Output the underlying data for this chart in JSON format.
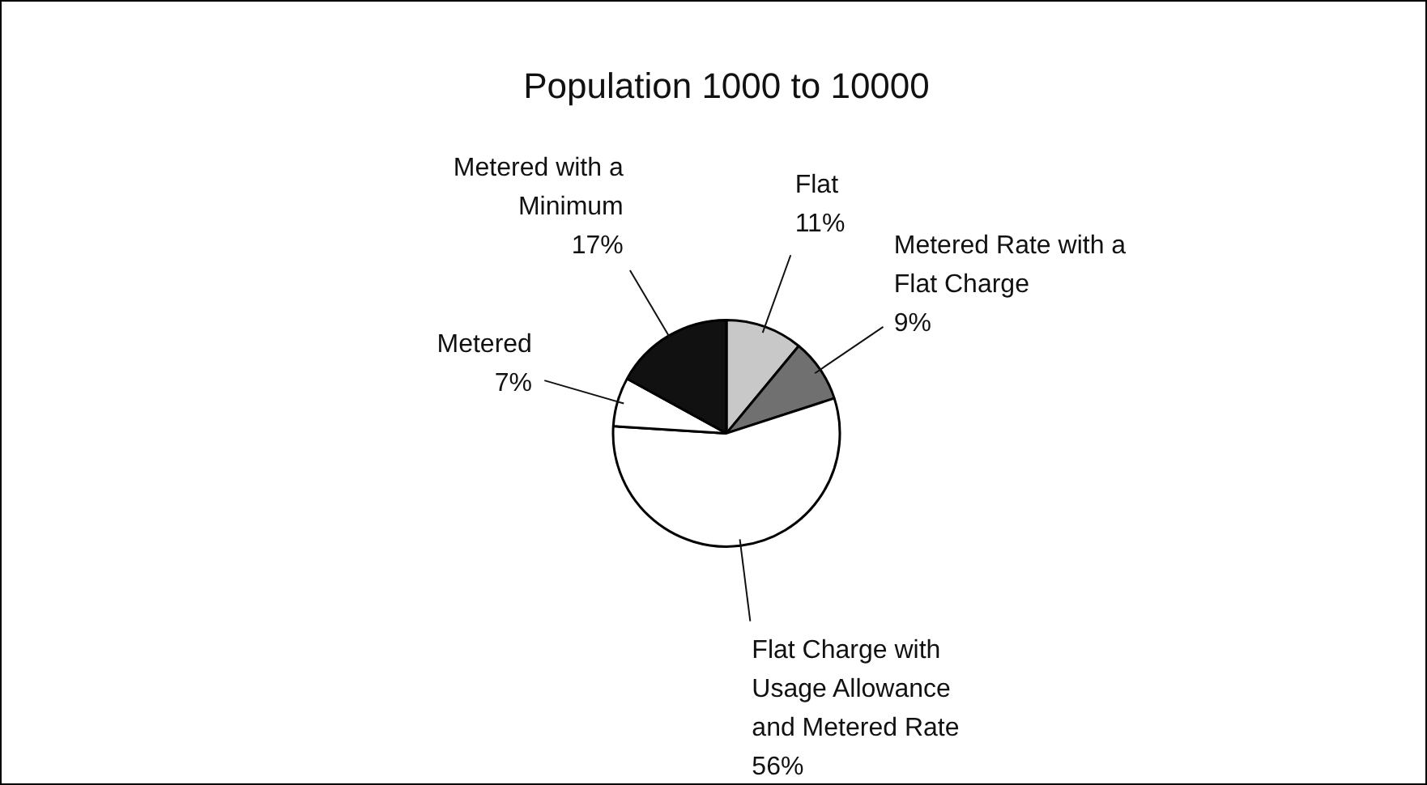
{
  "chart_data": {
    "type": "pie",
    "title": "Population 1000 to 10000",
    "categories": [
      "Flat",
      "Metered Rate with a Flat Charge",
      "Flat Charge with Usage Allowance and Metered Rate",
      "Metered",
      "Metered with a Minimum"
    ],
    "values": [
      11,
      9,
      56,
      7,
      17
    ],
    "value_labels": [
      "11%",
      "9%",
      "56%",
      "7%",
      "17%"
    ],
    "colors": [
      "#c8c8c8",
      "#707070",
      "#ffffff",
      "#ffffff",
      "#111111"
    ],
    "legend": false
  }
}
